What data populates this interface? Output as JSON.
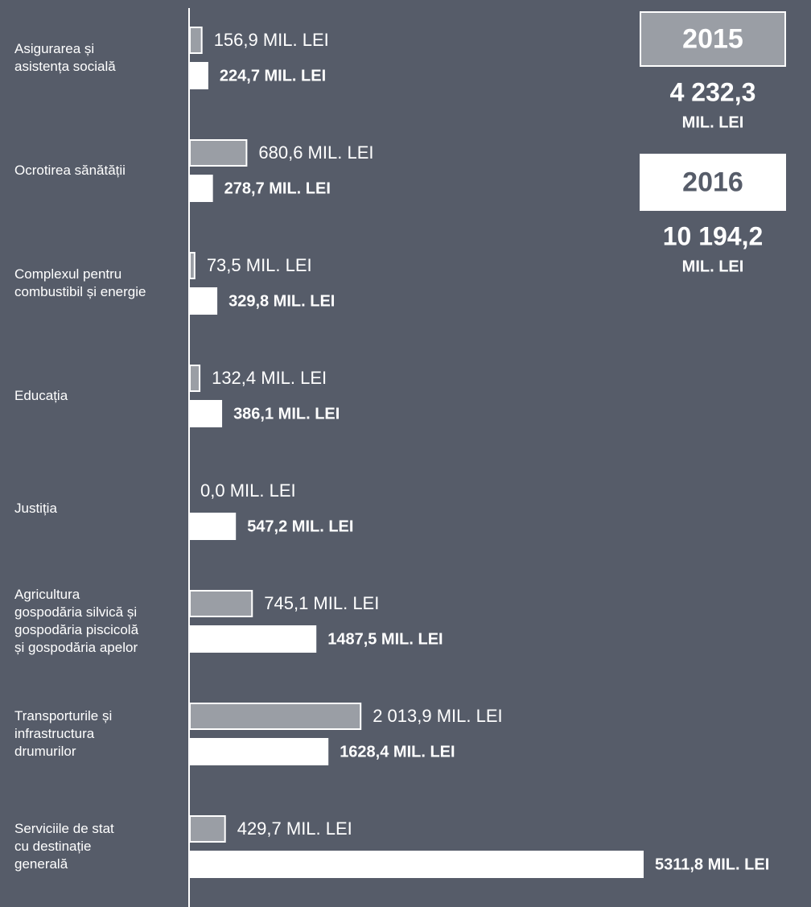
{
  "chart_data": {
    "type": "hbar",
    "categories": [
      "Asigurarea și\nasistența socială",
      "Ocrotirea sănătății",
      "Complexul pentru\ncombustibil și energie",
      "Educația",
      "Justiția",
      "Agricultura\ngospodăria silvică și\ngospodăria piscicolă\nși gospodăria apelor",
      "Transporturile și\ninfrastructura\ndrumurilor",
      "Serviciile de stat\ncu destinație\ngenerală"
    ],
    "xlim": [
      0,
      5500
    ],
    "series": [
      {
        "name": "2015",
        "color": "#9a9ea5",
        "total": 4232.3,
        "total_label": "4 232,3",
        "unit_label": "MIL. LEI",
        "values": [
          156.9,
          680.6,
          73.5,
          132.4,
          0.0,
          745.1,
          2013.9,
          429.7
        ],
        "value_labels": [
          "156,9 MIL. LEI",
          "680,6 MIL. LEI",
          "73,5 MIL. LEI",
          "132,4 MIL. LEI",
          "0,0 MIL. LEI",
          "745,1 MIL. LEI",
          "2 013,9 MIL. LEI",
          "429,7 MIL. LEI"
        ]
      },
      {
        "name": "2016",
        "color": "#ffffff",
        "total": 10194.2,
        "total_label": "10 194,2",
        "unit_label": "MIL. LEI",
        "values": [
          224.7,
          278.7,
          329.8,
          386.1,
          547.2,
          1487.5,
          1628.4,
          5311.8
        ],
        "value_labels": [
          "224,7 MIL. LEI",
          "278,7 MIL. LEI",
          "329,8 MIL. LEI",
          "386,1 MIL. LEI",
          "547,2 MIL. LEI",
          "1487,5 MIL. LEI",
          "1628,4 MIL. LEI",
          "5311,8 MIL. LEI"
        ]
      }
    ]
  }
}
